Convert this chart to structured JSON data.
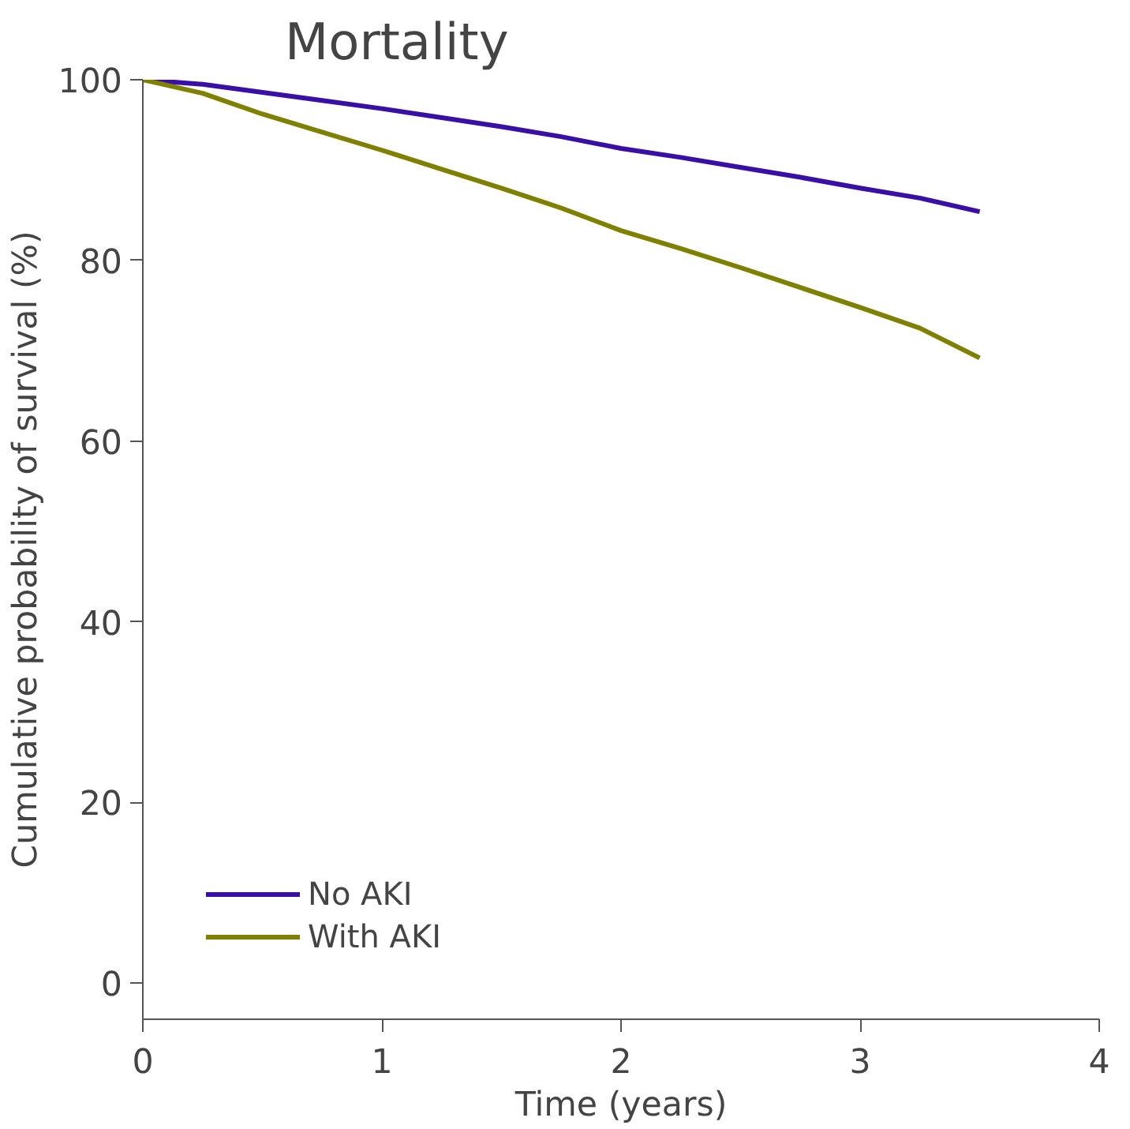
{
  "chart_data": {
    "type": "line",
    "title": "Mortality",
    "xlabel": "Time (years)",
    "ylabel": "Cumulative probability of survival (%)",
    "xlim": [
      0,
      4
    ],
    "xticks": [
      0,
      1,
      2,
      3,
      4
    ],
    "ylim": [
      -4,
      100
    ],
    "yticks": [
      0,
      20,
      40,
      60,
      80,
      100
    ],
    "grid": false,
    "legend": "bottom left",
    "line_style": "solid",
    "series": [
      {
        "name": "No AKI",
        "color": "#3a0fa6",
        "x": [
          0,
          0.25,
          0.5,
          0.75,
          1,
          1.25,
          1.5,
          1.75,
          2,
          2.25,
          2.5,
          2.75,
          3,
          3.25,
          3.5
        ],
        "values": [
          100,
          99.5,
          98.6,
          97.7,
          96.8,
          95.8,
          94.8,
          93.7,
          92.4,
          91.4,
          90.3,
          89.2,
          88.0,
          86.9,
          85.4
        ]
      },
      {
        "name": "With AKI",
        "color": "#7f7f00",
        "x": [
          0,
          0.25,
          0.5,
          0.75,
          1,
          1.25,
          1.5,
          1.75,
          2,
          2.25,
          2.5,
          2.75,
          3,
          3.25,
          3.5
        ],
        "values": [
          100,
          98.5,
          96.2,
          94.2,
          92.2,
          90.1,
          88.0,
          85.8,
          83.3,
          81.3,
          79.2,
          77.0,
          74.8,
          72.5,
          69.2
        ]
      }
    ]
  }
}
